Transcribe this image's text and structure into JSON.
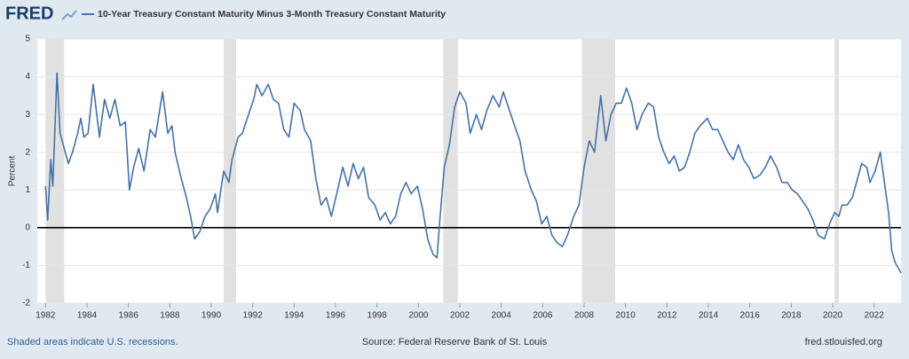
{
  "chart_data": {
    "type": "line",
    "logo": "FRED",
    "title": "10-Year Treasury Constant Maturity Minus 3-Month Treasury Constant Maturity",
    "y_label": "Percent",
    "footer_left": "Shaded areas indicate U.S. recessions.",
    "footer_center": "Source: Federal Reserve Bank of St. Louis",
    "footer_right": "fred.stlouisfed.org",
    "xlim": [
      1981.6,
      2023.3
    ],
    "xticks": [
      1982,
      1984,
      1986,
      1988,
      1990,
      1992,
      1994,
      1996,
      1998,
      2000,
      2002,
      2004,
      2006,
      2008,
      2010,
      2012,
      2014,
      2016,
      2018,
      2020,
      2022
    ],
    "ylim": [
      -2,
      5
    ],
    "yticks": [
      -2,
      -1,
      0,
      1,
      2,
      3,
      4,
      5
    ],
    "grid": true,
    "recessions": [
      [
        1982.0,
        1982.9
      ],
      [
        1990.6,
        1991.2
      ],
      [
        2001.2,
        2001.9
      ],
      [
        2007.9,
        2009.5
      ],
      [
        2020.1,
        2020.3
      ]
    ],
    "x": [
      1982.0,
      1982.1,
      1982.25,
      1982.35,
      1982.55,
      1982.7,
      1982.85,
      1983.1,
      1983.3,
      1983.55,
      1983.7,
      1983.85,
      1984.05,
      1984.3,
      1984.6,
      1984.85,
      1985.1,
      1985.35,
      1985.6,
      1985.85,
      1986.05,
      1986.25,
      1986.5,
      1986.75,
      1987.05,
      1987.3,
      1987.65,
      1987.9,
      1988.1,
      1988.25,
      1988.55,
      1988.8,
      1989.0,
      1989.2,
      1989.45,
      1989.7,
      1989.95,
      1990.2,
      1990.3,
      1990.6,
      1990.85,
      1991.0,
      1991.3,
      1991.5,
      1991.8,
      1992.05,
      1992.2,
      1992.45,
      1992.75,
      1993.0,
      1993.25,
      1993.5,
      1993.75,
      1994.0,
      1994.3,
      1994.5,
      1994.8,
      1995.05,
      1995.3,
      1995.55,
      1995.8,
      1996.1,
      1996.35,
      1996.6,
      1996.85,
      1997.1,
      1997.35,
      1997.6,
      1997.9,
      1998.15,
      1998.4,
      1998.65,
      1998.9,
      1999.15,
      1999.4,
      1999.65,
      1999.95,
      2000.2,
      2000.45,
      2000.7,
      2000.9,
      2001.05,
      2001.25,
      2001.5,
      2001.75,
      2002.0,
      2002.3,
      2002.5,
      2002.8,
      2003.05,
      2003.3,
      2003.6,
      2003.9,
      2004.1,
      2004.4,
      2004.65,
      2004.9,
      2005.15,
      2005.45,
      2005.7,
      2005.95,
      2006.2,
      2006.45,
      2006.7,
      2006.95,
      2007.2,
      2007.5,
      2007.75,
      2008.0,
      2008.25,
      2008.5,
      2008.8,
      2009.05,
      2009.3,
      2009.55,
      2009.8,
      2010.05,
      2010.3,
      2010.55,
      2010.8,
      2011.1,
      2011.35,
      2011.6,
      2011.85,
      2012.1,
      2012.35,
      2012.6,
      2012.85,
      2013.1,
      2013.35,
      2013.6,
      2013.95,
      2014.2,
      2014.45,
      2014.7,
      2014.95,
      2015.2,
      2015.45,
      2015.7,
      2015.95,
      2016.2,
      2016.5,
      2016.75,
      2017.0,
      2017.3,
      2017.55,
      2017.8,
      2018.05,
      2018.3,
      2018.55,
      2018.8,
      2019.05,
      2019.3,
      2019.6,
      2019.85,
      2020.1,
      2020.3,
      2020.45,
      2020.7,
      2020.95,
      2021.2,
      2021.4,
      2021.65,
      2021.8,
      2022.05,
      2022.3,
      2022.5,
      2022.7,
      2022.85,
      2023.0,
      2023.3
    ],
    "series": [
      {
        "name": "10-Year Treasury Constant Maturity Minus 3-Month Treasury Constant Maturity",
        "color": "#4572a7",
        "values": [
          1.1,
          0.2,
          1.8,
          1.1,
          4.1,
          2.5,
          2.2,
          1.7,
          2.0,
          2.5,
          2.9,
          2.4,
          2.5,
          3.8,
          2.4,
          3.4,
          2.9,
          3.4,
          2.7,
          2.8,
          1.0,
          1.6,
          2.1,
          1.5,
          2.6,
          2.4,
          3.6,
          2.5,
          2.7,
          2.0,
          1.3,
          0.8,
          0.3,
          -0.3,
          -0.1,
          0.3,
          0.5,
          0.9,
          0.4,
          1.5,
          1.2,
          1.8,
          2.4,
          2.5,
          3.0,
          3.4,
          3.8,
          3.5,
          3.8,
          3.4,
          3.3,
          2.6,
          2.4,
          3.3,
          3.1,
          2.6,
          2.3,
          1.3,
          0.6,
          0.8,
          0.3,
          1.0,
          1.6,
          1.1,
          1.7,
          1.3,
          1.6,
          0.8,
          0.6,
          0.2,
          0.4,
          0.1,
          0.3,
          0.9,
          1.2,
          0.9,
          1.1,
          0.5,
          -0.3,
          -0.7,
          -0.8,
          0.3,
          1.6,
          2.2,
          3.2,
          3.6,
          3.3,
          2.5,
          3.0,
          2.6,
          3.1,
          3.5,
          3.2,
          3.6,
          3.1,
          2.7,
          2.3,
          1.5,
          1.0,
          0.7,
          0.1,
          0.3,
          -0.2,
          -0.4,
          -0.5,
          -0.2,
          0.3,
          0.6,
          1.6,
          2.3,
          2.0,
          3.5,
          2.3,
          3.0,
          3.3,
          3.3,
          3.7,
          3.3,
          2.6,
          3.0,
          3.3,
          3.2,
          2.4,
          2.0,
          1.7,
          1.9,
          1.5,
          1.6,
          2.0,
          2.5,
          2.7,
          2.9,
          2.6,
          2.6,
          2.3,
          2.0,
          1.8,
          2.2,
          1.8,
          1.6,
          1.3,
          1.4,
          1.6,
          1.9,
          1.6,
          1.2,
          1.2,
          1.0,
          0.9,
          0.7,
          0.5,
          0.2,
          -0.2,
          -0.3,
          0.1,
          0.4,
          0.3,
          0.6,
          0.6,
          0.8,
          1.3,
          1.7,
          1.6,
          1.2,
          1.5,
          2.0,
          1.2,
          0.4,
          -0.6,
          -0.9,
          -1.2
        ]
      }
    ]
  }
}
